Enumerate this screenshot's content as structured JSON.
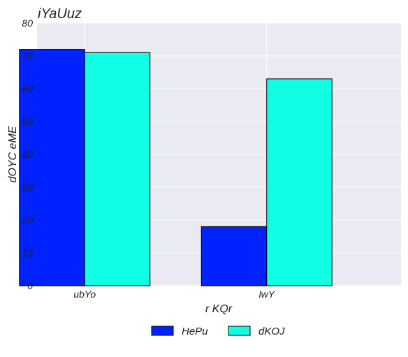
{
  "chart_data": {
    "type": "bar",
    "title": "iYaUuz",
    "xlabel": "r  KQr",
    "ylabel": "dOYC eME",
    "categories": [
      "ubYo",
      "lwY"
    ],
    "series": [
      {
        "name": "HePu",
        "values": [
          72,
          18
        ],
        "color": "#0022ff"
      },
      {
        "name": "dKOJ",
        "values": [
          71,
          63
        ],
        "color": "#10ffe4"
      }
    ],
    "ylim": [
      0,
      80
    ],
    "yticks": [
      0,
      10,
      20,
      30,
      40,
      50,
      60,
      70,
      80
    ],
    "grid": true,
    "legend_position": "bottom-center",
    "plot_background": "#eaeaf2"
  }
}
